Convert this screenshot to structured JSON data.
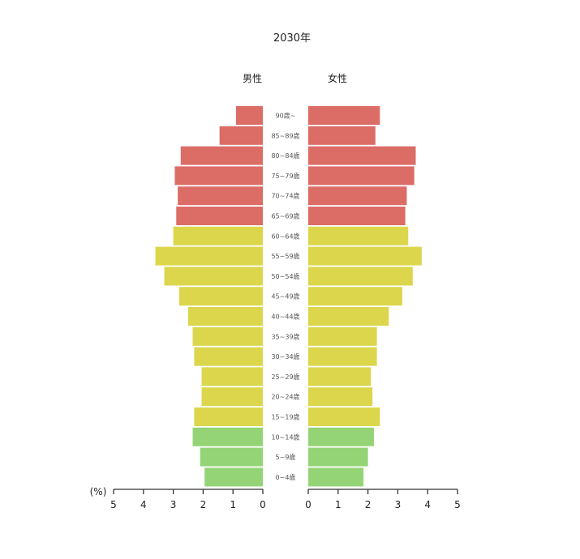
{
  "chart_data": {
    "type": "bar",
    "subtype": "population-pyramid",
    "title": "2030年",
    "unit_label": "(%)",
    "male_label": "男性",
    "female_label": "女性",
    "xlim": [
      0,
      5
    ],
    "ticks": [
      "0",
      "1",
      "2",
      "3",
      "4",
      "5"
    ],
    "categories": [
      "90歳~",
      "85~89歳",
      "80~84歳",
      "75~79歳",
      "70~74歳",
      "65~69歳",
      "60~64歳",
      "55~59歳",
      "50~54歳",
      "45~49歳",
      "40~44歳",
      "35~39歳",
      "30~34歳",
      "25~29歳",
      "20~24歳",
      "15~19歳",
      "10~14歳",
      "5~9歳",
      "0~4歳"
    ],
    "series": [
      {
        "name": "男性",
        "values": [
          0.9,
          1.45,
          2.75,
          2.95,
          2.85,
          2.9,
          3.0,
          3.6,
          3.3,
          2.8,
          2.5,
          2.35,
          2.3,
          2.05,
          2.05,
          2.3,
          2.35,
          2.1,
          1.95
        ]
      },
      {
        "name": "女性",
        "values": [
          2.4,
          2.25,
          3.6,
          3.55,
          3.3,
          3.25,
          3.35,
          3.8,
          3.5,
          3.15,
          2.7,
          2.3,
          2.3,
          2.1,
          2.15,
          2.4,
          2.2,
          2.0,
          1.85
        ]
      }
    ],
    "group_colors": {
      "elderly": "#dc6c66",
      "working": "#dcd64c",
      "young": "#94d476"
    },
    "bar_groups": [
      "elderly",
      "elderly",
      "elderly",
      "elderly",
      "elderly",
      "elderly",
      "working",
      "working",
      "working",
      "working",
      "working",
      "working",
      "working",
      "working",
      "working",
      "working",
      "young",
      "young",
      "young"
    ]
  }
}
